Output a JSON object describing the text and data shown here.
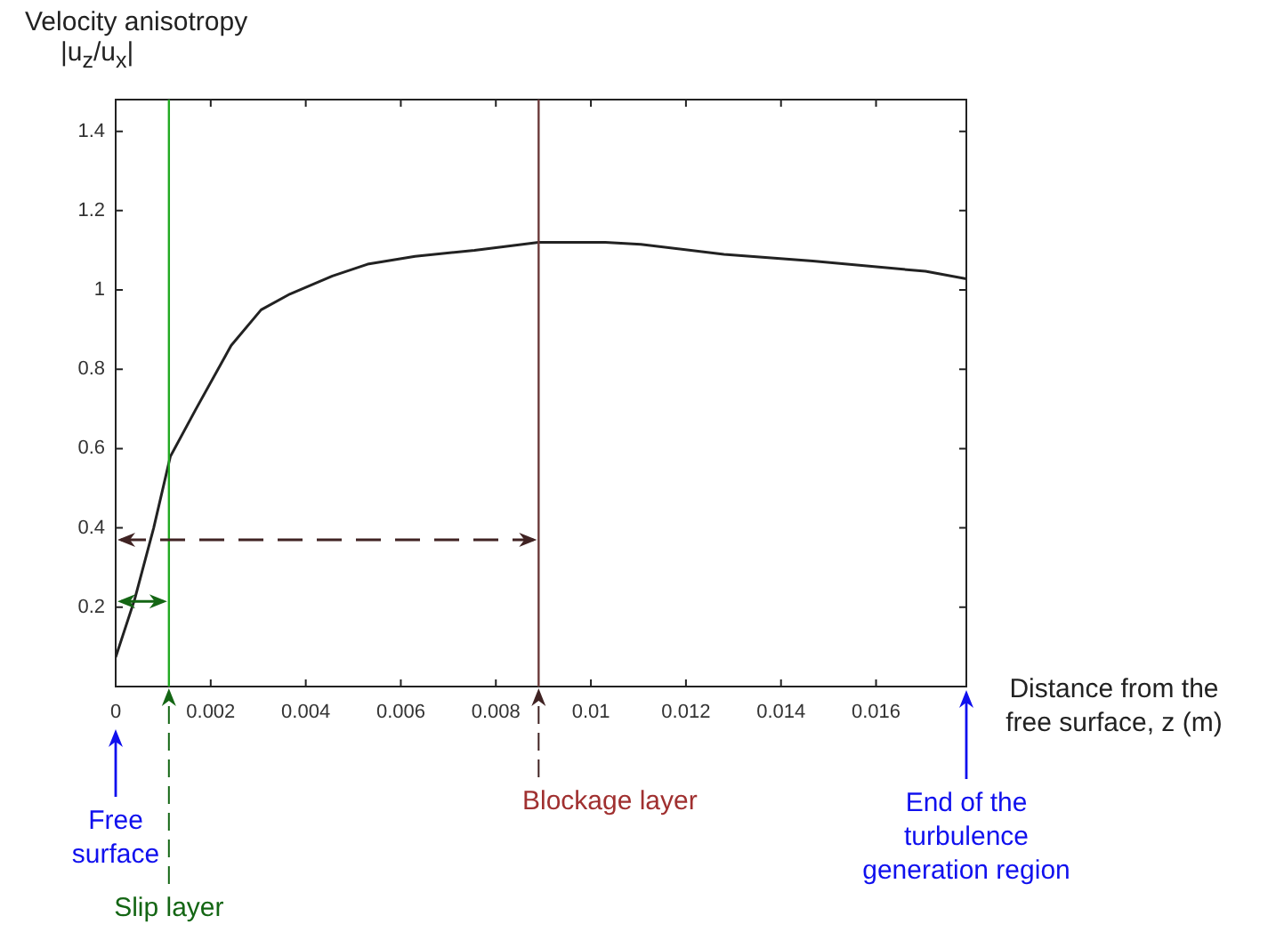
{
  "chart_data": {
    "type": "line",
    "xlabel": "Distance from the free surface, z (m)",
    "ylabel": "Velocity anisotropy |u$_{z}$/u$_{x}$|",
    "x": [
      0,
      0.0004,
      0.0008,
      0.00115,
      0.00169,
      0.00243,
      0.00306,
      0.00367,
      0.00456,
      0.0053,
      0.0063,
      0.00755,
      0.0089,
      0.0103,
      0.01105,
      0.0128,
      0.01467,
      0.01704,
      0.0179
    ],
    "series": [
      {
        "color": "#222222",
        "values": [
          0.074,
          0.22,
          0.4,
          0.58,
          0.7,
          0.86,
          0.95,
          0.99,
          1.035,
          1.065,
          1.085,
          1.1,
          1.12,
          1.12,
          1.115,
          1.09,
          1.073,
          1.047,
          1.028
        ]
      }
    ],
    "xlim": [
      0,
      0.0179
    ],
    "ylim": [
      0,
      1.48
    ],
    "xticks": [
      0,
      0.002,
      0.004,
      0.006,
      0.008,
      0.01,
      0.012,
      0.014,
      0.016
    ],
    "yticks": [
      0.2,
      0.4,
      0.6,
      0.8,
      1,
      1.2,
      1.4
    ],
    "ref_lines": [
      {
        "axis": "x",
        "value": 0.00112,
        "label": "Slip layer",
        "color": "#22aa22"
      },
      {
        "axis": "x",
        "value": 0.0089,
        "label": "Blockage layer",
        "color": "#6b3a3a"
      }
    ],
    "annotations": [
      "Free surface",
      "End of the turbulence generation region"
    ],
    "grid": false,
    "legend": false,
    "marker": "none",
    "line_style": "solid"
  }
}
